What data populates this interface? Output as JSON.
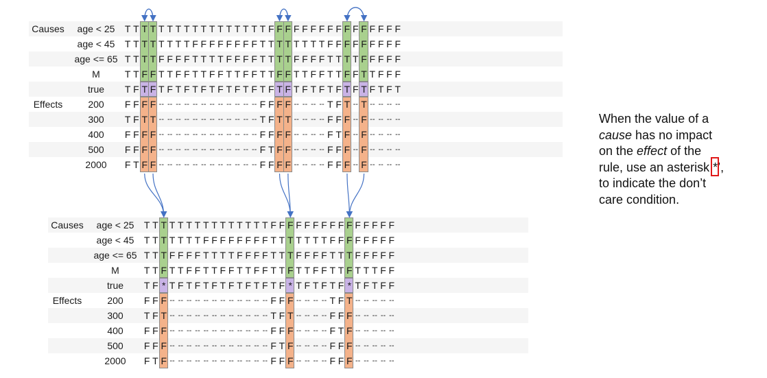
{
  "tables": [
    {
      "rows": [
        {
          "group": "Causes",
          "label": "age < 25",
          "values": [
            "T",
            "T",
            "T",
            "T",
            "T",
            "T",
            "T",
            "T",
            "T",
            "T",
            "T",
            "T",
            "T",
            "T",
            "T",
            "T",
            "T",
            "F",
            "F",
            "F",
            "F",
            "F",
            "F",
            "F",
            "F",
            "F",
            "F",
            "F",
            "F",
            "F",
            "F",
            "F",
            "F"
          ]
        },
        {
          "group": "",
          "label": "age < 45",
          "values": [
            "T",
            "T",
            "T",
            "T",
            "T",
            "T",
            "T",
            "T",
            "F",
            "F",
            "F",
            "F",
            "F",
            "F",
            "F",
            "F",
            "T",
            "T",
            "T",
            "T",
            "T",
            "T",
            "T",
            "T",
            "F",
            "F",
            "F",
            "F",
            "F",
            "F",
            "F",
            "F",
            "F"
          ]
        },
        {
          "group": "",
          "label": "age <= 65",
          "values": [
            "T",
            "T",
            "T",
            "T",
            "F",
            "F",
            "F",
            "F",
            "T",
            "T",
            "T",
            "T",
            "F",
            "F",
            "F",
            "F",
            "T",
            "T",
            "T",
            "T",
            "F",
            "F",
            "F",
            "F",
            "T",
            "T",
            "T",
            "T",
            "F",
            "F",
            "F",
            "F",
            "F"
          ]
        },
        {
          "group": "",
          "label": "M",
          "values": [
            "T",
            "T",
            "F",
            "F",
            "T",
            "T",
            "F",
            "F",
            "T",
            "T",
            "F",
            "F",
            "T",
            "T",
            "F",
            "F",
            "T",
            "T",
            "F",
            "F",
            "T",
            "T",
            "F",
            "F",
            "T",
            "T",
            "F",
            "F",
            "T",
            "T",
            "F",
            "F",
            "F"
          ]
        },
        {
          "group": "",
          "label": "true",
          "values": [
            "T",
            "F",
            "T",
            "F",
            "T",
            "F",
            "T",
            "F",
            "T",
            "F",
            "T",
            "F",
            "T",
            "F",
            "T",
            "F",
            "T",
            "F",
            "T",
            "F",
            "T",
            "F",
            "T",
            "F",
            "T",
            "F",
            "T",
            "F",
            "T",
            "F",
            "T",
            "F",
            "T"
          ]
        },
        {
          "group": "Effects",
          "label": "200",
          "values": [
            "F",
            "F",
            "F",
            "F",
            "--",
            "--",
            "--",
            "--",
            "--",
            "--",
            "--",
            "--",
            "--",
            "--",
            "--",
            "--",
            "F",
            "F",
            "F",
            "F",
            "--",
            "--",
            "--",
            "--",
            "T",
            "F",
            "T",
            "--",
            "T",
            "--",
            "--",
            "--",
            "--"
          ]
        },
        {
          "group": "",
          "label": "300",
          "values": [
            "T",
            "F",
            "T",
            "T",
            "--",
            "--",
            "--",
            "--",
            "--",
            "--",
            "--",
            "--",
            "--",
            "--",
            "--",
            "--",
            "T",
            "F",
            "T",
            "T",
            "--",
            "--",
            "--",
            "--",
            "F",
            "F",
            "F",
            "--",
            "F",
            "--",
            "--",
            "--",
            "--"
          ]
        },
        {
          "group": "",
          "label": "400",
          "values": [
            "F",
            "F",
            "F",
            "F",
            "--",
            "--",
            "--",
            "--",
            "--",
            "--",
            "--",
            "--",
            "--",
            "--",
            "--",
            "--",
            "F",
            "F",
            "F",
            "F",
            "--",
            "--",
            "--",
            "--",
            "F",
            "T",
            "F",
            "--",
            "F",
            "--",
            "--",
            "--",
            "--"
          ]
        },
        {
          "group": "",
          "label": "500",
          "values": [
            "F",
            "F",
            "F",
            "F",
            "--",
            "--",
            "--",
            "--",
            "--",
            "--",
            "--",
            "--",
            "--",
            "--",
            "--",
            "--",
            "F",
            "T",
            "F",
            "F",
            "--",
            "--",
            "--",
            "--",
            "F",
            "F",
            "F",
            "--",
            "F",
            "--",
            "--",
            "--",
            "--"
          ]
        },
        {
          "group": "",
          "label": "2000",
          "values": [
            "F",
            "T",
            "F",
            "F",
            "--",
            "--",
            "--",
            "--",
            "--",
            "--",
            "--",
            "--",
            "--",
            "--",
            "--",
            "--",
            "F",
            "F",
            "F",
            "F",
            "--",
            "--",
            "--",
            "--",
            "F",
            "F",
            "F",
            "--",
            "F",
            "--",
            "--",
            "--",
            "--"
          ]
        }
      ],
      "highlight_columns": [
        [
          2,
          3
        ],
        [
          18,
          19
        ],
        [
          26,
          28
        ]
      ],
      "colors": {
        "cause": "#a9d08e",
        "true_row": "#c9b3e6",
        "effect": "#f4b28a"
      }
    },
    {
      "rows": [
        {
          "group": "Causes",
          "label": "age < 25",
          "values": [
            "T",
            "T",
            "T",
            "T",
            "T",
            "T",
            "T",
            "T",
            "T",
            "T",
            "T",
            "T",
            "T",
            "T",
            "T",
            "F",
            "F",
            "F",
            "F",
            "F",
            "F",
            "F",
            "F",
            "F",
            "F",
            "F",
            "F",
            "F",
            "F",
            "F"
          ]
        },
        {
          "group": "",
          "label": "age < 45",
          "values": [
            "T",
            "T",
            "T",
            "T",
            "T",
            "T",
            "T",
            "F",
            "F",
            "F",
            "F",
            "F",
            "F",
            "F",
            "F",
            "T",
            "T",
            "T",
            "T",
            "T",
            "T",
            "T",
            "F",
            "F",
            "F",
            "F",
            "F",
            "F",
            "F",
            "F"
          ]
        },
        {
          "group": "",
          "label": "age <= 65",
          "values": [
            "T",
            "T",
            "T",
            "F",
            "F",
            "F",
            "F",
            "T",
            "T",
            "T",
            "T",
            "F",
            "F",
            "F",
            "F",
            "T",
            "T",
            "T",
            "F",
            "F",
            "F",
            "F",
            "T",
            "T",
            "T",
            "F",
            "F",
            "F",
            "F",
            "F"
          ]
        },
        {
          "group": "",
          "label": "M",
          "values": [
            "T",
            "T",
            "F",
            "T",
            "T",
            "F",
            "F",
            "T",
            "T",
            "F",
            "F",
            "T",
            "T",
            "F",
            "F",
            "T",
            "T",
            "F",
            "T",
            "T",
            "F",
            "F",
            "T",
            "T",
            "F",
            "T",
            "T",
            "T",
            "F",
            "F"
          ]
        },
        {
          "group": "",
          "label": "true",
          "values": [
            "T",
            "F",
            "*",
            "T",
            "F",
            "T",
            "F",
            "T",
            "F",
            "T",
            "F",
            "T",
            "F",
            "T",
            "F",
            "T",
            "F",
            "*",
            "T",
            "F",
            "T",
            "F",
            "T",
            "F",
            "*",
            "T",
            "F",
            "T",
            "F",
            "F"
          ]
        },
        {
          "group": "Effects",
          "label": "200",
          "values": [
            "F",
            "F",
            "F",
            "--",
            "--",
            "--",
            "--",
            "--",
            "--",
            "--",
            "--",
            "--",
            "--",
            "--",
            "--",
            "F",
            "F",
            "F",
            "--",
            "--",
            "--",
            "--",
            "T",
            "F",
            "T",
            "--",
            "--",
            "--",
            "--",
            "--"
          ]
        },
        {
          "group": "",
          "label": "300",
          "values": [
            "T",
            "F",
            "T",
            "--",
            "--",
            "--",
            "--",
            "--",
            "--",
            "--",
            "--",
            "--",
            "--",
            "--",
            "--",
            "T",
            "F",
            "T",
            "--",
            "--",
            "--",
            "--",
            "F",
            "F",
            "F",
            "--",
            "--",
            "--",
            "--",
            "--"
          ]
        },
        {
          "group": "",
          "label": "400",
          "values": [
            "F",
            "F",
            "F",
            "--",
            "--",
            "--",
            "--",
            "--",
            "--",
            "--",
            "--",
            "--",
            "--",
            "--",
            "--",
            "F",
            "F",
            "F",
            "--",
            "--",
            "--",
            "--",
            "F",
            "T",
            "F",
            "--",
            "--",
            "--",
            "--",
            "--"
          ]
        },
        {
          "group": "",
          "label": "500",
          "values": [
            "F",
            "F",
            "F",
            "--",
            "--",
            "--",
            "--",
            "--",
            "--",
            "--",
            "--",
            "--",
            "--",
            "--",
            "--",
            "F",
            "T",
            "F",
            "--",
            "--",
            "--",
            "--",
            "F",
            "F",
            "F",
            "--",
            "--",
            "--",
            "--",
            "--"
          ]
        },
        {
          "group": "",
          "label": "2000",
          "values": [
            "F",
            "T",
            "F",
            "--",
            "--",
            "--",
            "--",
            "--",
            "--",
            "--",
            "--",
            "--",
            "--",
            "--",
            "--",
            "F",
            "F",
            "F",
            "--",
            "--",
            "--",
            "--",
            "F",
            "F",
            "F",
            "--",
            "--",
            "--",
            "--",
            "--"
          ]
        }
      ],
      "highlight_columns": [
        [
          2
        ],
        [
          17
        ],
        [
          24
        ]
      ],
      "colors": {
        "cause": "#a9d08e",
        "true_row": "#c9b3e6",
        "effect": "#f4b28a"
      }
    }
  ],
  "arrow_color": "#4472c4",
  "annotation": {
    "line1": "When the value of a",
    "line2_em": "cause",
    "line2_rest": " has no impact",
    "line3_pre": "on the ",
    "line3_em": "effect",
    "line3_post": " of the",
    "line4_pre": "rule, use an asterisk ",
    "line4_mark": "*’,",
    "line5": "to indicate the don’t",
    "line6": "care condition.",
    "box_color": "#e01818"
  }
}
